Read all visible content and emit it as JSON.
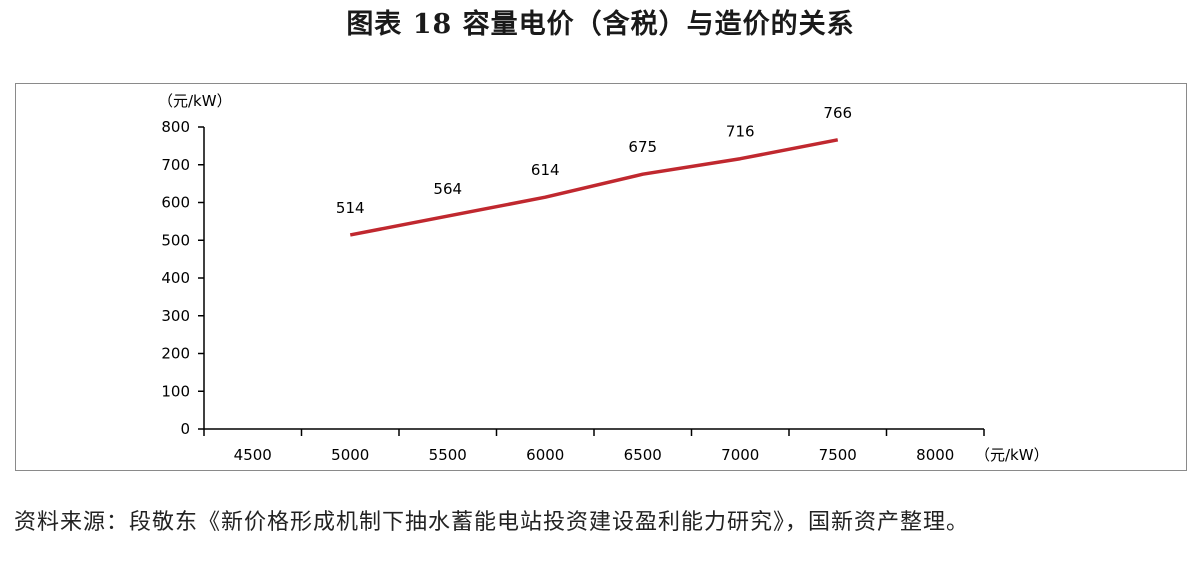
{
  "title": "图表 18  容量电价（含税）与造价的关系",
  "source": "资料来源：段敬东《新价格形成机制下抽水蓄能电站投资建设盈利能力研究》，国新资产整理。",
  "colors": {
    "line": "#c0282f",
    "axis": "#000000",
    "frame": "#8a8a8a"
  },
  "chart_data": {
    "type": "line",
    "ylabel": "（元/kW）",
    "xlabel": "（元/kW）",
    "x_ticks": [
      4500,
      5000,
      5500,
      6000,
      6500,
      7000,
      7500,
      8000
    ],
    "y_ticks": [
      0,
      100,
      200,
      300,
      400,
      500,
      600,
      700,
      800
    ],
    "xlim": [
      4250,
      8250
    ],
    "ylim": [
      0,
      800
    ],
    "grid": false,
    "series": [
      {
        "x": [
          5000,
          5500,
          6000,
          6500,
          7000,
          7500
        ],
        "y": [
          514,
          564,
          614,
          675,
          716,
          766
        ],
        "labels": [
          "514",
          "564",
          "614",
          "675",
          "716",
          "766"
        ]
      }
    ]
  }
}
